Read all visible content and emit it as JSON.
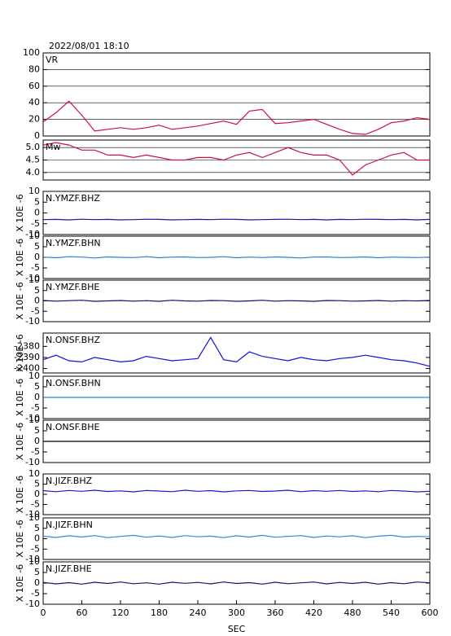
{
  "chart_data": [
    {
      "type": "line",
      "title": "2022/08/01 18:10",
      "xlim": [
        0,
        600
      ],
      "ylim": [
        0,
        100
      ],
      "yticks": [
        0,
        20,
        40,
        60,
        80,
        100
      ],
      "grid": true,
      "x": [
        0,
        20,
        40,
        60,
        80,
        100,
        120,
        140,
        160,
        180,
        200,
        220,
        240,
        260,
        280,
        300,
        320,
        340,
        360,
        380,
        400,
        420,
        440,
        460,
        480,
        500,
        520,
        540,
        560,
        580,
        600
      ],
      "series": [
        {
          "name": "VR",
          "color": "#d0103a",
          "values": [
            17,
            28,
            42,
            25,
            6,
            8,
            10,
            8,
            10,
            13,
            8,
            10,
            12,
            15,
            18,
            14,
            30,
            32,
            15,
            16,
            18,
            20,
            14,
            8,
            3,
            2,
            8,
            16,
            18,
            22,
            20
          ]
        }
      ]
    },
    {
      "type": "line",
      "xlim": [
        0,
        600
      ],
      "ylim": [
        3.7,
        5.3
      ],
      "yticks": [
        {
          "value": 4,
          "label": "4.0"
        },
        4.5,
        {
          "value": 5,
          "label": "5.0"
        }
      ],
      "grid": true,
      "x": [
        0,
        20,
        40,
        60,
        80,
        100,
        120,
        140,
        160,
        180,
        200,
        220,
        240,
        260,
        280,
        300,
        320,
        340,
        360,
        380,
        400,
        420,
        440,
        460,
        480,
        500,
        520,
        540,
        560,
        580,
        600
      ],
      "series": [
        {
          "name": "Mw",
          "color": "#d0103a",
          "values": [
            5.1,
            5.2,
            5.1,
            4.9,
            4.9,
            4.7,
            4.7,
            4.6,
            4.7,
            4.6,
            4.5,
            4.5,
            4.6,
            4.6,
            4.5,
            4.7,
            4.8,
            4.6,
            4.8,
            5.0,
            4.8,
            4.7,
            4.7,
            4.5,
            3.9,
            4.3,
            4.5,
            4.7,
            4.8,
            4.5,
            4.5
          ]
        }
      ]
    },
    {
      "type": "line",
      "ylabel": "X 10E -6",
      "xlim": [
        0,
        600
      ],
      "ylim": [
        -10,
        10
      ],
      "yticks": [
        -10,
        -5,
        0,
        5,
        10
      ],
      "grid": false,
      "x": [
        0,
        20,
        40,
        60,
        80,
        100,
        120,
        140,
        160,
        180,
        200,
        220,
        240,
        260,
        280,
        300,
        320,
        340,
        360,
        380,
        400,
        420,
        440,
        460,
        480,
        500,
        520,
        540,
        560,
        580,
        600
      ],
      "series": [
        {
          "name": "N.YMZF.BHZ",
          "color": "#1a1aa0",
          "values": [
            -3.1,
            -3.0,
            -3.2,
            -2.9,
            -3.1,
            -3.0,
            -3.2,
            -3.1,
            -2.9,
            -3.0,
            -3.2,
            -3.1,
            -3.0,
            -3.1,
            -2.9,
            -3.0,
            -3.2,
            -3.1,
            -3.0,
            -2.9,
            -3.1,
            -3.0,
            -3.2,
            -3.0,
            -3.1,
            -2.9,
            -3.0,
            -3.1,
            -3.0,
            -3.2,
            -3.0
          ]
        }
      ]
    },
    {
      "type": "line",
      "ylabel": "X 10E -6",
      "xlim": [
        0,
        600
      ],
      "ylim": [
        -10,
        10
      ],
      "yticks": [
        -10,
        -5,
        0,
        5,
        10
      ],
      "grid": false,
      "x": [
        0,
        20,
        40,
        60,
        80,
        100,
        120,
        140,
        160,
        180,
        200,
        220,
        240,
        260,
        280,
        300,
        320,
        340,
        360,
        380,
        400,
        420,
        440,
        460,
        480,
        500,
        520,
        540,
        560,
        580,
        600
      ],
      "series": [
        {
          "name": "N.YMZF.BHN",
          "color": "#2a80e0",
          "values": [
            0.1,
            -0.2,
            0.3,
            0.1,
            -0.3,
            0.2,
            0.0,
            -0.1,
            0.3,
            -0.2,
            0.1,
            0.2,
            -0.1,
            0.0,
            0.3,
            -0.2,
            0.1,
            -0.1,
            0.2,
            0.0,
            -0.3,
            0.1,
            0.2,
            -0.1,
            0.0,
            0.2,
            -0.2,
            0.1,
            0.0,
            -0.1,
            0.1
          ]
        }
      ]
    },
    {
      "type": "line",
      "ylabel": "X 10E -6",
      "xlim": [
        0,
        600
      ],
      "ylim": [
        -10,
        10
      ],
      "yticks": [
        -10,
        -5,
        0,
        5,
        10
      ],
      "grid": false,
      "x": [
        0,
        20,
        40,
        60,
        80,
        100,
        120,
        140,
        160,
        180,
        200,
        220,
        240,
        260,
        280,
        300,
        320,
        340,
        360,
        380,
        400,
        420,
        440,
        460,
        480,
        500,
        520,
        540,
        560,
        580,
        600
      ],
      "series": [
        {
          "name": "N.YMZF.BHE",
          "color": "#101060",
          "values": [
            0.2,
            -0.1,
            0.1,
            0.3,
            -0.2,
            0.0,
            0.2,
            -0.1,
            0.1,
            -0.2,
            0.3,
            0.0,
            -0.1,
            0.2,
            0.1,
            -0.2,
            0.0,
            0.3,
            -0.1,
            0.1,
            0.0,
            -0.2,
            0.2,
            0.1,
            -0.1,
            0.0,
            0.2,
            -0.1,
            0.1,
            0.0,
            0.2
          ]
        }
      ]
    },
    {
      "type": "line",
      "ylabel": "X 10E -6",
      "xlim": [
        0,
        600
      ],
      "ylim": [
        -2404,
        -2368
      ],
      "yticks": [
        -2400,
        -2390,
        -2380
      ],
      "grid": false,
      "x": [
        0,
        20,
        40,
        60,
        80,
        100,
        120,
        140,
        160,
        180,
        200,
        220,
        240,
        260,
        280,
        300,
        320,
        340,
        360,
        380,
        400,
        420,
        440,
        460,
        480,
        500,
        520,
        540,
        560,
        580,
        600
      ],
      "series": [
        {
          "name": "N.ONSF.BHZ",
          "color": "#1010e0",
          "values": [
            -2392,
            -2388,
            -2393,
            -2394,
            -2390,
            -2392,
            -2394,
            -2393,
            -2389,
            -2391,
            -2393,
            -2392,
            -2391,
            -2372,
            -2392,
            -2394,
            -2385,
            -2389,
            -2391,
            -2393,
            -2390,
            -2392,
            -2393,
            -2391,
            -2390,
            -2388,
            -2390,
            -2392,
            -2393,
            -2395,
            -2398
          ]
        }
      ]
    },
    {
      "type": "line",
      "ylabel": "X 10E -6",
      "xlim": [
        0,
        600
      ],
      "ylim": [
        -10,
        10
      ],
      "yticks": [
        -10,
        -5,
        0,
        5,
        10
      ],
      "grid": false,
      "x": [
        0,
        20,
        40,
        60,
        80,
        100,
        120,
        140,
        160,
        180,
        200,
        220,
        240,
        260,
        280,
        300,
        320,
        340,
        360,
        380,
        400,
        420,
        440,
        460,
        480,
        500,
        520,
        540,
        560,
        580,
        600
      ],
      "series": [
        {
          "name": "N.ONSF.BHN",
          "color": "#2a80e0",
          "values": [
            0,
            0,
            0,
            0,
            0,
            0,
            0,
            0,
            0,
            0,
            0,
            0,
            0,
            0,
            0,
            0,
            0,
            0,
            0,
            0,
            0,
            0,
            0,
            0,
            0,
            0,
            0,
            0,
            0,
            0,
            0
          ]
        }
      ]
    },
    {
      "type": "line",
      "ylabel": "X 10E -6",
      "xlim": [
        0,
        600
      ],
      "ylim": [
        -10,
        10
      ],
      "yticks": [
        -10,
        -5,
        0,
        5,
        10
      ],
      "grid": false,
      "x": [
        0,
        20,
        40,
        60,
        80,
        100,
        120,
        140,
        160,
        180,
        200,
        220,
        240,
        260,
        280,
        300,
        320,
        340,
        360,
        380,
        400,
        420,
        440,
        460,
        480,
        500,
        520,
        540,
        560,
        580,
        600
      ],
      "series": [
        {
          "name": "N.ONSF.BHE",
          "color": "#000000",
          "values": [
            0,
            0,
            0,
            0,
            0,
            0,
            0,
            0,
            0,
            0,
            0,
            0,
            0,
            0,
            0,
            0,
            0,
            0,
            0,
            0,
            0,
            0,
            0,
            0,
            0,
            0,
            0,
            0,
            0,
            0,
            0
          ]
        }
      ]
    },
    {
      "type": "line",
      "ylabel": "X 10E -6",
      "xlim": [
        0,
        600
      ],
      "ylim": [
        -10,
        10
      ],
      "yticks": [
        -10,
        -5,
        0,
        5,
        10
      ],
      "grid": false,
      "x": [
        0,
        20,
        40,
        60,
        80,
        100,
        120,
        140,
        160,
        180,
        200,
        220,
        240,
        260,
        280,
        300,
        320,
        340,
        360,
        380,
        400,
        420,
        440,
        460,
        480,
        500,
        520,
        540,
        560,
        580,
        600
      ],
      "series": [
        {
          "name": "N.JIZF.BHZ",
          "color": "#1a1ad0",
          "values": [
            1.8,
            1.3,
            1.9,
            1.5,
            2.0,
            1.4,
            1.7,
            1.2,
            1.9,
            1.6,
            1.3,
            2.0,
            1.5,
            1.8,
            1.2,
            1.7,
            1.9,
            1.4,
            1.6,
            2.0,
            1.3,
            1.8,
            1.5,
            1.9,
            1.4,
            1.7,
            1.3,
            1.9,
            1.6,
            1.2,
            1.5
          ]
        }
      ]
    },
    {
      "type": "line",
      "ylabel": "X 10E -6",
      "xlim": [
        0,
        600
      ],
      "ylim": [
        -10,
        10
      ],
      "yticks": [
        -10,
        -5,
        0,
        5,
        10
      ],
      "grid": false,
      "x": [
        0,
        20,
        40,
        60,
        80,
        100,
        120,
        140,
        160,
        180,
        200,
        220,
        240,
        260,
        280,
        300,
        320,
        340,
        360,
        380,
        400,
        420,
        440,
        460,
        480,
        500,
        520,
        540,
        560,
        580,
        600
      ],
      "series": [
        {
          "name": "N.JIZF.BHN",
          "color": "#2a8ae0",
          "values": [
            1.2,
            0.6,
            1.4,
            0.8,
            1.5,
            0.5,
            1.1,
            1.6,
            0.7,
            1.3,
            0.6,
            1.5,
            0.9,
            1.2,
            0.5,
            1.4,
            0.8,
            1.6,
            0.7,
            1.1,
            1.5,
            0.6,
            1.3,
            0.9,
            1.4,
            0.5,
            1.2,
            1.6,
            0.8,
            1.1,
            0.9
          ]
        }
      ]
    },
    {
      "type": "line",
      "ylabel": "X 10E -6",
      "xlim": [
        0,
        600
      ],
      "ylim": [
        -10,
        10
      ],
      "yticks": [
        -10,
        -5,
        0,
        5,
        10
      ],
      "grid": false,
      "xticks": [
        0,
        60,
        120,
        180,
        240,
        300,
        360,
        420,
        480,
        540,
        600
      ],
      "xlabel": "SEC",
      "x": [
        0,
        20,
        40,
        60,
        80,
        100,
        120,
        140,
        160,
        180,
        200,
        220,
        240,
        260,
        280,
        300,
        320,
        340,
        360,
        380,
        400,
        420,
        440,
        460,
        480,
        500,
        520,
        540,
        560,
        580,
        600
      ],
      "series": [
        {
          "name": "N.JIZF.BHE",
          "color": "#141470",
          "values": [
            0.3,
            -0.4,
            0.2,
            -0.5,
            0.4,
            -0.2,
            0.5,
            -0.3,
            0.1,
            -0.5,
            0.4,
            -0.1,
            0.3,
            -0.4,
            0.5,
            -0.2,
            0.2,
            -0.5,
            0.4,
            -0.3,
            0.1,
            0.5,
            -0.4,
            0.3,
            -0.2,
            0.4,
            -0.5,
            0.2,
            -0.3,
            0.5,
            0.1
          ]
        }
      ]
    }
  ]
}
